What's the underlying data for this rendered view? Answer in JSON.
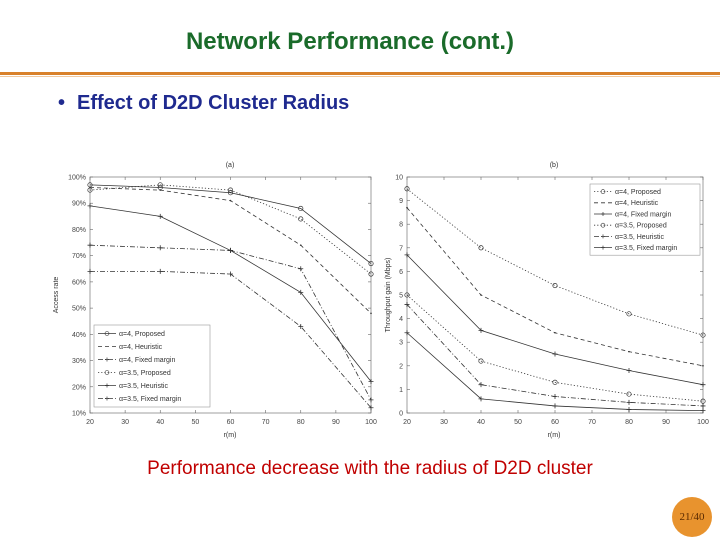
{
  "slide": {
    "title": "Network Performance (cont.)",
    "bullet_symbol": "•",
    "bullet": "Effect of D2D Cluster Radius",
    "caption": "Performance decrease with the radius of D2D cluster",
    "page": "21/40",
    "colors": {
      "title": "#1a6b2a",
      "bullet": "#1f2a8f",
      "caption": "#c00000",
      "rule": "#d9812b",
      "badge": "#e8932e"
    }
  },
  "chart_data": [
    {
      "type": "line",
      "panel_label": "(a)",
      "xlabel": "r(m)",
      "ylabel": "Access rate",
      "xlim": [
        20,
        100
      ],
      "ylim": [
        10,
        100
      ],
      "xticks": [
        20,
        30,
        40,
        50,
        60,
        70,
        80,
        90,
        100
      ],
      "yticks": [
        "10%",
        "20%",
        "30%",
        "40%",
        "50%",
        "60%",
        "70%",
        "80%",
        "90%",
        "100%"
      ],
      "legend_position": "bottom-left",
      "series": [
        {
          "name": "α=4, Proposed",
          "x": [
            20,
            40,
            60,
            80,
            100
          ],
          "y": [
            97,
            96,
            94,
            88,
            67
          ],
          "style": "solid",
          "marker": "circle"
        },
        {
          "name": "α=4, Heuristic",
          "x": [
            20,
            40,
            60,
            80,
            100
          ],
          "y": [
            96,
            95,
            91,
            74,
            48
          ],
          "style": "dashed",
          "marker": "none"
        },
        {
          "name": "α=4, Fixed margin",
          "x": [
            20,
            40,
            60,
            80,
            100
          ],
          "y": [
            74,
            73,
            72,
            65,
            15
          ],
          "style": "dashdot",
          "marker": "plus"
        },
        {
          "name": "α=3.5, Proposed",
          "x": [
            20,
            40,
            60,
            80,
            100
          ],
          "y": [
            95,
            97,
            95,
            84,
            63
          ],
          "style": "dotted",
          "marker": "circle"
        },
        {
          "name": "α=3.5, Heuristic",
          "x": [
            20,
            40,
            60,
            80,
            100
          ],
          "y": [
            89,
            85,
            72,
            56,
            22
          ],
          "style": "solid",
          "marker": "plus"
        },
        {
          "name": "α=3.5, Fixed margin",
          "x": [
            20,
            40,
            60,
            80,
            100
          ],
          "y": [
            64,
            64,
            63,
            43,
            12
          ],
          "style": "dashdot",
          "marker": "plus"
        }
      ]
    },
    {
      "type": "line",
      "panel_label": "(b)",
      "xlabel": "r(m)",
      "ylabel": "Throughput gain (Mbps)",
      "xlim": [
        20,
        100
      ],
      "ylim": [
        0,
        10
      ],
      "xticks": [
        20,
        30,
        40,
        50,
        60,
        70,
        80,
        90,
        100
      ],
      "yticks": [
        "0",
        "1",
        "2",
        "3",
        "4",
        "5",
        "6",
        "7",
        "8",
        "9",
        "10"
      ],
      "legend_position": "top-right",
      "series": [
        {
          "name": "α=4, Proposed",
          "x": [
            20,
            40,
            60,
            80,
            100
          ],
          "y": [
            9.5,
            7.0,
            5.4,
            4.2,
            3.3
          ],
          "style": "dotted",
          "marker": "circle"
        },
        {
          "name": "α=4, Heuristic",
          "x": [
            20,
            40,
            60,
            80,
            100
          ],
          "y": [
            8.7,
            5.0,
            3.4,
            2.6,
            2.0
          ],
          "style": "dashed",
          "marker": "none"
        },
        {
          "name": "α=4, Fixed margin",
          "x": [
            20,
            40,
            60,
            80,
            100
          ],
          "y": [
            6.7,
            3.5,
            2.5,
            1.8,
            1.2
          ],
          "style": "solid",
          "marker": "plus"
        },
        {
          "name": "α=3.5, Proposed",
          "x": [
            20,
            40,
            60,
            80,
            100
          ],
          "y": [
            5.0,
            2.2,
            1.3,
            0.8,
            0.5
          ],
          "style": "dotted",
          "marker": "circle"
        },
        {
          "name": "α=3.5, Heuristic",
          "x": [
            20,
            40,
            60,
            80,
            100
          ],
          "y": [
            4.6,
            1.2,
            0.7,
            0.45,
            0.3
          ],
          "style": "dashdot",
          "marker": "plus"
        },
        {
          "name": "α=3.5, Fixed margin",
          "x": [
            20,
            40,
            60,
            80,
            100
          ],
          "y": [
            3.4,
            0.6,
            0.3,
            0.15,
            0.1
          ],
          "style": "solid",
          "marker": "plus"
        }
      ]
    }
  ]
}
